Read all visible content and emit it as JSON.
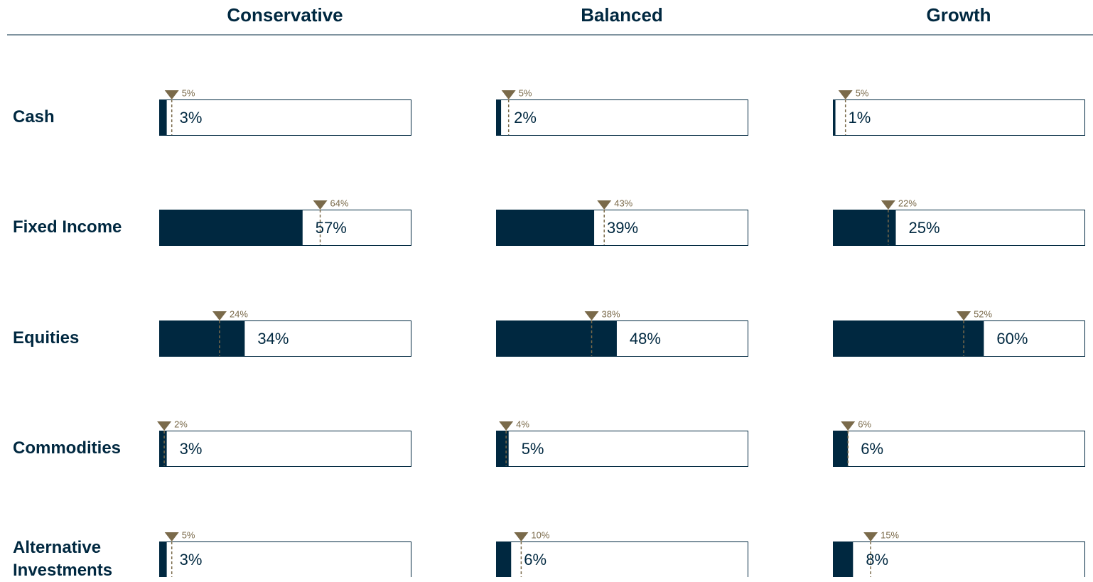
{
  "chart_data": {
    "type": "bullet",
    "categories": [
      "Cash",
      "Fixed Income",
      "Equities",
      "Commodities",
      "Alternative Investments"
    ],
    "xlim": [
      0,
      100
    ],
    "bar_color": "#002840",
    "target_color": "#7a6a4a",
    "series": [
      {
        "name": "Conservative",
        "values": [
          3,
          57,
          34,
          3,
          3
        ],
        "value_labels": [
          "3%",
          "57%",
          "34%",
          "3%",
          "3%"
        ],
        "targets": [
          5,
          64,
          24,
          2,
          5
        ],
        "target_labels": [
          "5%",
          "64%",
          "24%",
          "2%",
          "5%"
        ]
      },
      {
        "name": "Balanced",
        "values": [
          2,
          39,
          48,
          5,
          6
        ],
        "value_labels": [
          "2%",
          "39%",
          "48%",
          "5%",
          "6%"
        ],
        "targets": [
          5,
          43,
          38,
          4,
          10
        ],
        "target_labels": [
          "5%",
          "43%",
          "38%",
          "4%",
          "10%"
        ]
      },
      {
        "name": "Growth",
        "values": [
          1,
          25,
          60,
          6,
          8
        ],
        "value_labels": [
          "1%",
          "25%",
          "60%",
          "6%",
          "8%"
        ],
        "targets": [
          5,
          22,
          52,
          6,
          15
        ],
        "target_labels": [
          "5%",
          "22%",
          "52%",
          "6%",
          "15%"
        ]
      }
    ]
  }
}
